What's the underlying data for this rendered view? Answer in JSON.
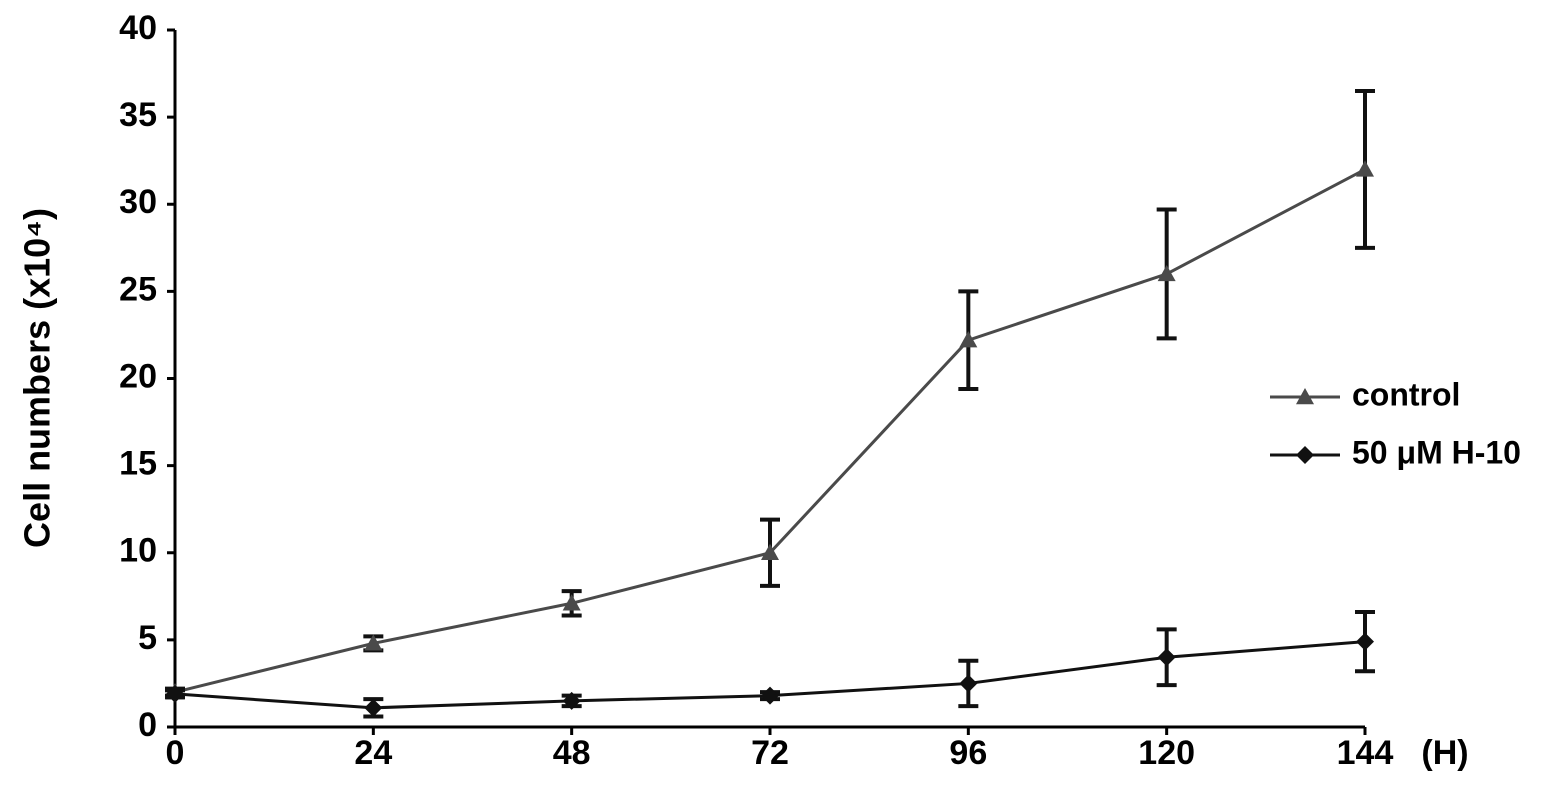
{
  "chart_data": {
    "type": "line",
    "ylabel": "Cell numbers (x10⁴)",
    "xlabel": "(H)",
    "x": [
      0,
      24,
      48,
      72,
      96,
      120,
      144
    ],
    "xlim": [
      0,
      144
    ],
    "xticks": [
      0,
      24,
      48,
      72,
      96,
      120,
      144
    ],
    "ylim": [
      0,
      40
    ],
    "yticks": [
      0,
      5,
      10,
      15,
      20,
      25,
      30,
      35,
      40
    ],
    "legend": "right",
    "series": [
      {
        "name": "control",
        "color": "#4a4a4a",
        "marker": "triangle",
        "values": [
          2,
          4.8,
          7.1,
          10,
          22.2,
          26,
          32
        ],
        "errors": [
          0.2,
          0.4,
          0.7,
          1.9,
          2.8,
          3.7,
          4.5
        ]
      },
      {
        "name": "50 μM H-10",
        "color": "#111111",
        "marker": "diamond",
        "values": [
          1.9,
          1.1,
          1.5,
          1.8,
          2.5,
          4,
          4.9
        ],
        "errors": [
          0.2,
          0.5,
          0.3,
          0.2,
          1.3,
          1.6,
          1.7
        ]
      }
    ]
  }
}
